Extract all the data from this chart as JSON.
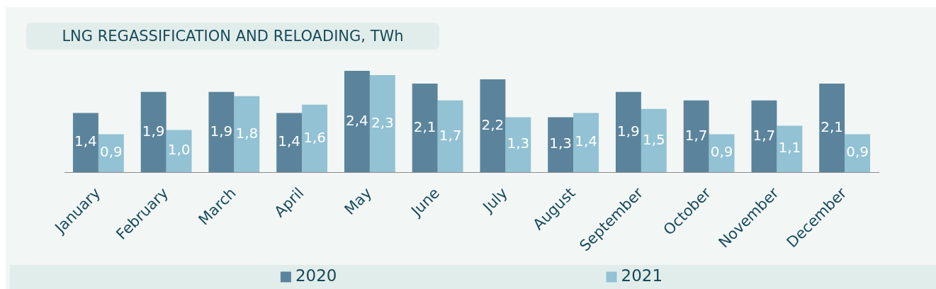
{
  "chart_data": {
    "type": "bar",
    "title": "LNG REGASSIFICATION AND RELOADING, TWh",
    "categories": [
      "January",
      "February",
      "March",
      "April",
      "May",
      "June",
      "July",
      "August",
      "September",
      "October",
      "November",
      "December"
    ],
    "series": [
      {
        "name": "2020",
        "color": "#5b849c",
        "values": [
          1.4,
          1.9,
          1.9,
          1.4,
          2.4,
          2.1,
          2.2,
          1.3,
          1.9,
          1.7,
          1.7,
          2.1
        ],
        "value_labels": [
          "1,4",
          "1,9",
          "1,9",
          "1,4",
          "2,4",
          "2,1",
          "2,2",
          "1,3",
          "1,9",
          "1,7",
          "1,7",
          "2,1"
        ]
      },
      {
        "name": "2021",
        "color": "#92c2d4",
        "values": [
          0.9,
          1.0,
          1.8,
          1.6,
          2.3,
          1.7,
          1.3,
          1.4,
          1.5,
          0.9,
          1.1,
          0.9
        ],
        "value_labels": [
          "0,9",
          "1,0",
          "1,8",
          "1,6",
          "2,3",
          "1,7",
          "1,3",
          "1,4",
          "1,5",
          "0,9",
          "1,1",
          "0,9"
        ]
      }
    ],
    "legend": "bottom",
    "tick_labels": "x"
  }
}
